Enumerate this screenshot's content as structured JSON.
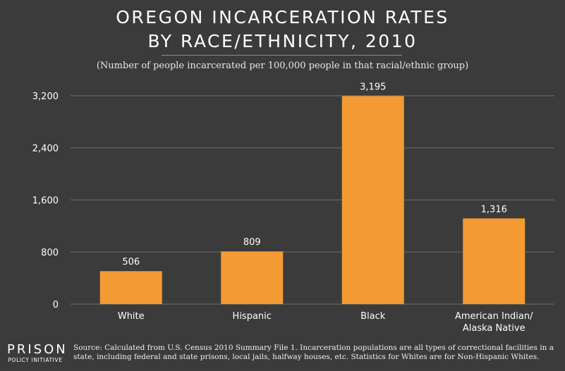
{
  "title_line1": "OREGON INCARCERATION RATES",
  "title_line2": "BY RACE/ETHNICITY, 2010",
  "subtitle": "(Number of people incarcerated per 100,000 people in that racial/ethnic group)",
  "logo": {
    "main": "PRISON",
    "sub": "POLICY INITIATIVE"
  },
  "source": "Source: Calculated from U.S. Census 2010 Summary File 1. Incarceration populations are all types of correctional facilities in a state, including federal and state prisons, local jails, halfway houses, etc. Statistics for Whites are for Non-Hispanic Whites.",
  "colors": {
    "background": "#3b3b3b",
    "bar": "#f39a32",
    "grid": "#6e6e6e",
    "text": "#ffffff"
  },
  "chart_data": {
    "type": "bar",
    "categories": [
      [
        "White"
      ],
      [
        "Hispanic"
      ],
      [
        "Black"
      ],
      [
        "American Indian/",
        "Alaska Native"
      ]
    ],
    "values": [
      506,
      809,
      3195,
      1316
    ],
    "value_labels": [
      "506",
      "809",
      "3,195",
      "1,316"
    ],
    "yticks": [
      0,
      800,
      1600,
      2400,
      3200
    ],
    "ytick_labels": [
      "0",
      "800",
      "1,600",
      "2,400",
      "3,200"
    ],
    "ylim": [
      0,
      3200
    ],
    "grid": true
  }
}
